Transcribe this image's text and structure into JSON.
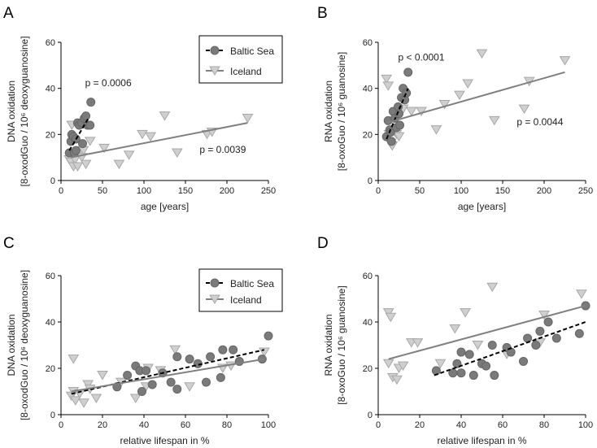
{
  "chart_data": [
    {
      "panel": "A",
      "type": "scatter",
      "xlabel": "age [years]",
      "ylabel": [
        "DNA oxidation",
        "[8-oxodGuo / 10⁶ deoxyguanosine]"
      ],
      "xlim": [
        0,
        250
      ],
      "ylim": [
        0,
        60
      ],
      "xticks": [
        0,
        50,
        100,
        150,
        200,
        250
      ],
      "yticks": [
        0,
        20,
        40,
        60
      ],
      "legend": {
        "placement": "top-right",
        "entries": [
          "Baltic Sea",
          "Iceland"
        ]
      },
      "annotations": [
        {
          "text": "p = 0.0006",
          "x": 29,
          "y": 41
        },
        {
          "text": "p = 0.0039",
          "x": 167,
          "y": 12
        }
      ],
      "series": [
        {
          "name": "Baltic Sea",
          "marker": "circle",
          "points": [
            [
              10,
              12
            ],
            [
              12,
              17
            ],
            [
              13,
              20
            ],
            [
              15,
              19
            ],
            [
              16,
              12
            ],
            [
              18,
              13
            ],
            [
              18,
              18
            ],
            [
              20,
              25
            ],
            [
              22,
              24
            ],
            [
              25,
              25
            ],
            [
              26,
              16
            ],
            [
              28,
              27
            ],
            [
              30,
              28
            ],
            [
              32,
              24
            ],
            [
              35,
              24
            ],
            [
              36,
              34
            ]
          ],
          "fit": [
            [
              10,
              13
            ],
            [
              33,
              27
            ]
          ],
          "fit_style": "dashed"
        },
        {
          "name": "Iceland",
          "marker": "triangle",
          "points": [
            [
              10,
              9
            ],
            [
              12,
              8
            ],
            [
              13,
              24
            ],
            [
              15,
              6
            ],
            [
              17,
              9
            ],
            [
              20,
              6
            ],
            [
              22,
              12
            ],
            [
              25,
              10
            ],
            [
              27,
              13
            ],
            [
              30,
              7
            ],
            [
              35,
              17
            ],
            [
              52,
              14
            ],
            [
              70,
              7
            ],
            [
              82,
              11
            ],
            [
              98,
              20
            ],
            [
              108,
              19
            ],
            [
              125,
              28
            ],
            [
              140,
              12
            ],
            [
              176,
              20
            ],
            [
              182,
              21
            ],
            [
              225,
              27
            ]
          ],
          "fit": [
            [
              12,
              10
            ],
            [
              225,
              25
            ]
          ],
          "fit_style": "solid"
        }
      ]
    },
    {
      "panel": "B",
      "type": "scatter",
      "xlabel": "age [years]",
      "ylabel": [
        "RNA oxidation",
        "[8-oxoGuo / 10⁶ guanosine]"
      ],
      "xlim": [
        0,
        250
      ],
      "ylim": [
        0,
        60
      ],
      "xticks": [
        0,
        50,
        100,
        150,
        200,
        250
      ],
      "yticks": [
        0,
        20,
        40,
        60
      ],
      "annotations": [
        {
          "text": "p < 0.0001",
          "x": 24,
          "y": 52
        },
        {
          "text": "p = 0.0044",
          "x": 167,
          "y": 24
        }
      ],
      "series": [
        {
          "name": "Baltic Sea",
          "marker": "circle",
          "points": [
            [
              10,
              19
            ],
            [
              12,
              26
            ],
            [
              14,
              22
            ],
            [
              15,
              21
            ],
            [
              16,
              17
            ],
            [
              18,
              30
            ],
            [
              20,
              27
            ],
            [
              22,
              23
            ],
            [
              24,
              32
            ],
            [
              25,
              29
            ],
            [
              26,
              24
            ],
            [
              28,
              36
            ],
            [
              30,
              40
            ],
            [
              32,
              35
            ],
            [
              34,
              38
            ],
            [
              36,
              47
            ]
          ],
          "fit": [
            [
              10,
              18
            ],
            [
              36,
              40
            ]
          ],
          "fit_style": "dashed"
        },
        {
          "name": "Iceland",
          "marker": "triangle",
          "points": [
            [
              10,
              44
            ],
            [
              12,
              41
            ],
            [
              13,
              20
            ],
            [
              15,
              16
            ],
            [
              17,
              15
            ],
            [
              20,
              21
            ],
            [
              22,
              20
            ],
            [
              25,
              19
            ],
            [
              30,
              31
            ],
            [
              40,
              30
            ],
            [
              52,
              30
            ],
            [
              70,
              22
            ],
            [
              80,
              33
            ],
            [
              98,
              37
            ],
            [
              108,
              42
            ],
            [
              125,
              55
            ],
            [
              140,
              26
            ],
            [
              176,
              31
            ],
            [
              182,
              43
            ],
            [
              225,
              52
            ]
          ],
          "fit": [
            [
              10,
              25
            ],
            [
              225,
              47
            ]
          ],
          "fit_style": "solid"
        }
      ]
    },
    {
      "panel": "C",
      "type": "scatter",
      "xlabel": "relative lifespan in %",
      "ylabel": [
        "DNA oxidation",
        "[8-oxodGuo / 10⁶ deoxyguanosine]"
      ],
      "xlim": [
        0,
        100
      ],
      "ylim": [
        0,
        60
      ],
      "xticks": [
        0,
        20,
        40,
        60,
        80,
        100
      ],
      "yticks": [
        0,
        20,
        40,
        60
      ],
      "legend": {
        "placement": "top-right",
        "entries": [
          "Baltic Sea",
          "Iceland"
        ]
      },
      "series": [
        {
          "name": "Baltic Sea",
          "marker": "circle",
          "points": [
            [
              27,
              12
            ],
            [
              32,
              17
            ],
            [
              36,
              21
            ],
            [
              38,
              19
            ],
            [
              39,
              10
            ],
            [
              41,
              19
            ],
            [
              44,
              13
            ],
            [
              49,
              18
            ],
            [
              53,
              14
            ],
            [
              56,
              25
            ],
            [
              56,
              11
            ],
            [
              62,
              24
            ],
            [
              66,
              22
            ],
            [
              70,
              14
            ],
            [
              72,
              25
            ],
            [
              77,
              16
            ],
            [
              78,
              28
            ],
            [
              83,
              28
            ],
            [
              86,
              23
            ],
            [
              97,
              24
            ],
            [
              100,
              34
            ]
          ],
          "fit": [
            [
              5,
              9
            ],
            [
              98,
              28
            ]
          ],
          "fit_style": "dashed"
        },
        {
          "name": "Iceland",
          "marker": "triangle",
          "points": [
            [
              5,
              8
            ],
            [
              6,
              10
            ],
            [
              6,
              24
            ],
            [
              7,
              6
            ],
            [
              9,
              9
            ],
            [
              11,
              5
            ],
            [
              13,
              13
            ],
            [
              14,
              11
            ],
            [
              17,
              7
            ],
            [
              20,
              17
            ],
            [
              29,
              14
            ],
            [
              36,
              7
            ],
            [
              41,
              12
            ],
            [
              42,
              20
            ],
            [
              48,
              19
            ],
            [
              55,
              28
            ],
            [
              62,
              12
            ],
            [
              78,
              20
            ],
            [
              82,
              21
            ],
            [
              98,
              27
            ]
          ],
          "fit": [
            [
              5,
              10
            ],
            [
              98,
              24
            ]
          ],
          "fit_style": "solid"
        }
      ]
    },
    {
      "panel": "D",
      "type": "scatter",
      "xlabel": "relative lifespan in %",
      "ylabel": [
        "RNA oxidation",
        "[8-oxoGuo / 10⁶ guanosine]"
      ],
      "xlim": [
        0,
        100
      ],
      "ylim": [
        0,
        60
      ],
      "xticks": [
        0,
        20,
        40,
        60,
        80,
        100
      ],
      "yticks": [
        0,
        20,
        40,
        60
      ],
      "series": [
        {
          "name": "Baltic Sea",
          "marker": "circle",
          "points": [
            [
              28,
              19
            ],
            [
              36,
              18
            ],
            [
              38,
              22
            ],
            [
              40,
              27
            ],
            [
              40,
              18
            ],
            [
              44,
              26
            ],
            [
              46,
              17
            ],
            [
              50,
              22
            ],
            [
              52,
              21
            ],
            [
              55,
              30
            ],
            [
              56,
              17
            ],
            [
              62,
              29
            ],
            [
              64,
              27
            ],
            [
              70,
              23
            ],
            [
              72,
              33
            ],
            [
              76,
              30
            ],
            [
              78,
              36
            ],
            [
              82,
              40
            ],
            [
              86,
              33
            ],
            [
              97,
              35
            ],
            [
              100,
              47
            ]
          ],
          "fit": [
            [
              27,
              17
            ],
            [
              100,
              40
            ]
          ],
          "fit_style": "dashed"
        },
        {
          "name": "Iceland",
          "marker": "triangle",
          "points": [
            [
              5,
              22
            ],
            [
              5,
              44
            ],
            [
              6,
              42
            ],
            [
              7,
              16
            ],
            [
              9,
              15
            ],
            [
              10,
              20
            ],
            [
              12,
              21
            ],
            [
              16,
              31
            ],
            [
              19,
              31
            ],
            [
              30,
              22
            ],
            [
              37,
              37
            ],
            [
              42,
              44
            ],
            [
              48,
              30
            ],
            [
              55,
              55
            ],
            [
              62,
              26
            ],
            [
              78,
              31
            ],
            [
              80,
              43
            ],
            [
              98,
              52
            ]
          ],
          "fit": [
            [
              5,
              24
            ],
            [
              100,
              47
            ]
          ],
          "fit_style": "solid"
        }
      ]
    }
  ],
  "colors": {
    "baltic": "#7a7a7a",
    "iceland": "#cfcfcf",
    "iceland_stroke": "#a8a8a8",
    "fit_solid": "#808080"
  }
}
